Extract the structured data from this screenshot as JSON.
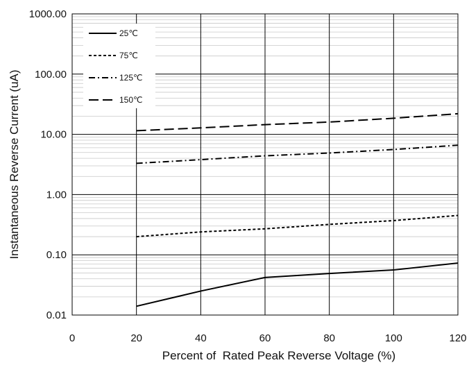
{
  "chart_data": {
    "type": "line",
    "y_scale": "log",
    "grid": true,
    "legend_position": "top-left",
    "xlabel": "Percent of  Rated Peak Reverse Voltage (%)",
    "ylabel": "Instantaneous Reverse Current (uA)",
    "xlim": [
      0,
      120
    ],
    "ylim": [
      0.01,
      1000
    ],
    "x_ticks": [
      "0",
      "20",
      "40",
      "60",
      "80",
      "100",
      "120"
    ],
    "y_ticks": [
      "0.01",
      "0.10",
      "1.00",
      "10.00",
      "100.00",
      "1000.00"
    ],
    "x": [
      20,
      40,
      60,
      80,
      100,
      120
    ],
    "series": [
      {
        "name": "25℃",
        "style": "solid",
        "values": [
          0.014,
          0.025,
          0.042,
          0.049,
          0.056,
          0.073
        ]
      },
      {
        "name": "75℃",
        "style": "dotted",
        "values": [
          0.2,
          0.24,
          0.27,
          0.32,
          0.37,
          0.45
        ]
      },
      {
        "name": "125℃",
        "style": "dash-dot",
        "values": [
          3.3,
          3.8,
          4.4,
          4.9,
          5.6,
          6.6
        ]
      },
      {
        "name": "150℃",
        "style": "dashed",
        "values": [
          11.5,
          12.8,
          14.5,
          16.0,
          18.5,
          22.0
        ]
      }
    ]
  }
}
